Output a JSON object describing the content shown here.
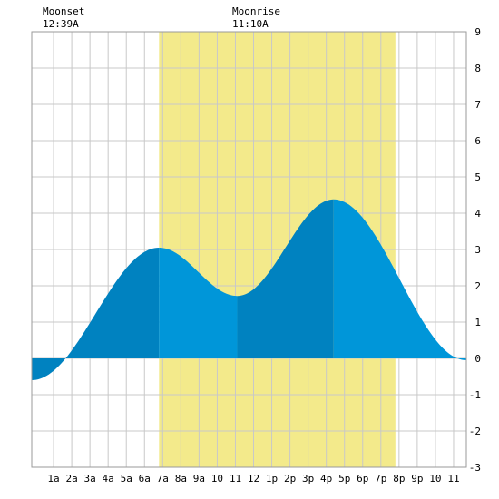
{
  "moon": {
    "moonset": {
      "label": "Moonset",
      "time": "12:39A",
      "hour": 0.65
    },
    "moonrise": {
      "label": "Moonrise",
      "time": "11:10A",
      "hour": 11.17
    }
  },
  "chart_data": {
    "type": "area",
    "title": "",
    "xlabel": "",
    "ylabel": "",
    "xlim": [
      -0.2,
      23.7
    ],
    "ylim": [
      -3,
      9
    ],
    "grid": true,
    "x_tick_labels": [
      {
        "hour": 1,
        "label": "1a"
      },
      {
        "hour": 2,
        "label": "2a"
      },
      {
        "hour": 3,
        "label": "3a"
      },
      {
        "hour": 4,
        "label": "4a"
      },
      {
        "hour": 5,
        "label": "5a"
      },
      {
        "hour": 6,
        "label": "6a"
      },
      {
        "hour": 7,
        "label": "7a"
      },
      {
        "hour": 8,
        "label": "8a"
      },
      {
        "hour": 9,
        "label": "9a"
      },
      {
        "hour": 10,
        "label": "10"
      },
      {
        "hour": 11,
        "label": "11"
      },
      {
        "hour": 12,
        "label": "12"
      },
      {
        "hour": 13,
        "label": "1p"
      },
      {
        "hour": 14,
        "label": "2p"
      },
      {
        "hour": 15,
        "label": "3p"
      },
      {
        "hour": 16,
        "label": "4p"
      },
      {
        "hour": 17,
        "label": "5p"
      },
      {
        "hour": 18,
        "label": "6p"
      },
      {
        "hour": 19,
        "label": "7p"
      },
      {
        "hour": 20,
        "label": "8p"
      },
      {
        "hour": 21,
        "label": "9p"
      },
      {
        "hour": 22,
        "label": "10"
      },
      {
        "hour": 23,
        "label": "11"
      }
    ],
    "y_ticks": [
      -3,
      -2,
      -1,
      0,
      1,
      2,
      3,
      4,
      5,
      6,
      7,
      8,
      9
    ],
    "daylight": {
      "start": 6.8,
      "end": 19.8,
      "color": "#f3ea8b"
    },
    "colors": {
      "light_fill": "#0096d9",
      "dark_fill": "#0082c0",
      "grid": "#c8c8c8"
    },
    "extremes": [
      {
        "x": -0.2,
        "y": -0.6,
        "kind": "low"
      },
      {
        "x": 6.8,
        "y": 3.05,
        "kind": "high"
      },
      {
        "x": 11.1,
        "y": 1.72,
        "kind": "low"
      },
      {
        "x": 16.4,
        "y": 4.38,
        "kind": "high"
      },
      {
        "x": 23.7,
        "y": -0.05,
        "kind": "low"
      }
    ],
    "segments": [
      {
        "from": -0.2,
        "to": 6.8,
        "shade": "dark"
      },
      {
        "from": 6.8,
        "to": 11.1,
        "shade": "light"
      },
      {
        "from": 11.1,
        "to": 16.4,
        "shade": "dark"
      },
      {
        "from": 16.4,
        "to": 23.7,
        "shade": "light"
      }
    ]
  }
}
